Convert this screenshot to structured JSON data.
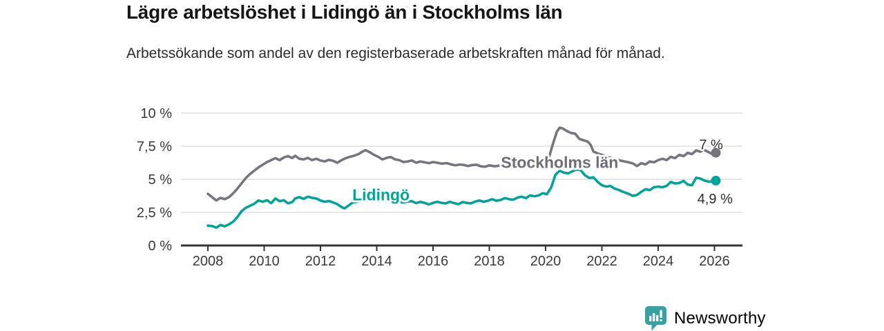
{
  "chart_data": {
    "type": "line",
    "title": "Lägre arbetslöshet i Lidingö än i Stockholms län",
    "subtitle": "Arbetssökande som andel av den registerbaserade arbetskraften månad för månad.",
    "grid": true,
    "legend_position": "inline-labels",
    "x_axis": {
      "ticks": [
        2008,
        2010,
        2012,
        2014,
        2016,
        2018,
        2020,
        2022,
        2024,
        2026
      ],
      "range": [
        2007.9,
        2027.0
      ]
    },
    "y_axis": {
      "range": [
        0,
        10
      ],
      "unit": "%",
      "ticks": [
        {
          "value": 0,
          "label": "0 %"
        },
        {
          "value": 2.5,
          "label": "2,5 %"
        },
        {
          "value": 5,
          "label": "5 %"
        },
        {
          "value": 7.5,
          "label": "7,5 %"
        },
        {
          "value": 10,
          "label": "10 %"
        }
      ]
    },
    "series": [
      {
        "name": "Stockholms län",
        "slug": "stockholms-lan",
        "color": "#75757E",
        "label_color": "#6E6E78",
        "label_at": [
          2020.5,
          6.28
        ],
        "end_label": "7 %",
        "end_label_at": [
          2025.88,
          7.62
        ],
        "end_value": 7.0,
        "points": [
          [
            2008.0,
            3.9
          ],
          [
            2008.15,
            3.65
          ],
          [
            2008.3,
            3.4
          ],
          [
            2008.45,
            3.6
          ],
          [
            2008.6,
            3.5
          ],
          [
            2008.75,
            3.65
          ],
          [
            2008.9,
            3.95
          ],
          [
            2009.05,
            4.3
          ],
          [
            2009.2,
            4.7
          ],
          [
            2009.35,
            5.1
          ],
          [
            2009.5,
            5.4
          ],
          [
            2009.65,
            5.65
          ],
          [
            2009.8,
            5.9
          ],
          [
            2009.95,
            6.1
          ],
          [
            2010.1,
            6.3
          ],
          [
            2010.25,
            6.45
          ],
          [
            2010.4,
            6.6
          ],
          [
            2010.55,
            6.45
          ],
          [
            2010.7,
            6.65
          ],
          [
            2010.85,
            6.75
          ],
          [
            2011.0,
            6.6
          ],
          [
            2011.1,
            6.78
          ],
          [
            2011.25,
            6.55
          ],
          [
            2011.4,
            6.5
          ],
          [
            2011.55,
            6.62
          ],
          [
            2011.7,
            6.45
          ],
          [
            2011.85,
            6.55
          ],
          [
            2012.0,
            6.42
          ],
          [
            2012.15,
            6.35
          ],
          [
            2012.3,
            6.47
          ],
          [
            2012.45,
            6.4
          ],
          [
            2012.6,
            6.25
          ],
          [
            2012.75,
            6.45
          ],
          [
            2012.9,
            6.6
          ],
          [
            2013.05,
            6.7
          ],
          [
            2013.2,
            6.78
          ],
          [
            2013.35,
            6.9
          ],
          [
            2013.5,
            7.1
          ],
          [
            2013.6,
            7.2
          ],
          [
            2013.75,
            7.05
          ],
          [
            2013.9,
            6.85
          ],
          [
            2014.05,
            6.7
          ],
          [
            2014.2,
            6.5
          ],
          [
            2014.35,
            6.62
          ],
          [
            2014.5,
            6.68
          ],
          [
            2014.65,
            6.5
          ],
          [
            2014.8,
            6.45
          ],
          [
            2014.95,
            6.3
          ],
          [
            2015.1,
            6.35
          ],
          [
            2015.25,
            6.42
          ],
          [
            2015.4,
            6.25
          ],
          [
            2015.55,
            6.35
          ],
          [
            2015.7,
            6.28
          ],
          [
            2015.85,
            6.22
          ],
          [
            2016.0,
            6.3
          ],
          [
            2016.15,
            6.25
          ],
          [
            2016.3,
            6.18
          ],
          [
            2016.5,
            6.22
          ],
          [
            2016.65,
            6.12
          ],
          [
            2016.8,
            6.05
          ],
          [
            2016.95,
            6.12
          ],
          [
            2017.1,
            6.08
          ],
          [
            2017.25,
            6.0
          ],
          [
            2017.4,
            6.08
          ],
          [
            2017.55,
            6.1
          ],
          [
            2017.7,
            5.98
          ],
          [
            2017.85,
            5.95
          ],
          [
            2018.0,
            6.05
          ],
          [
            2018.2,
            5.98
          ],
          [
            2018.4,
            6.05
          ],
          [
            2018.6,
            6.0
          ],
          [
            2018.8,
            6.02
          ],
          [
            2019.0,
            6.05
          ],
          [
            2019.2,
            6.02
          ],
          [
            2019.4,
            6.08
          ],
          [
            2019.6,
            6.1
          ],
          [
            2019.8,
            6.18
          ],
          [
            2019.95,
            6.3
          ],
          [
            2020.1,
            6.5
          ],
          [
            2020.25,
            7.6
          ],
          [
            2020.4,
            8.6
          ],
          [
            2020.5,
            8.9
          ],
          [
            2020.6,
            8.85
          ],
          [
            2020.75,
            8.65
          ],
          [
            2020.9,
            8.5
          ],
          [
            2021.05,
            8.45
          ],
          [
            2021.2,
            8.05
          ],
          [
            2021.35,
            7.95
          ],
          [
            2021.5,
            7.85
          ],
          [
            2021.6,
            7.6
          ],
          [
            2021.7,
            7.1
          ],
          [
            2021.85,
            6.95
          ],
          [
            2022.0,
            6.85
          ],
          [
            2022.2,
            6.7
          ],
          [
            2022.4,
            6.55
          ],
          [
            2022.6,
            6.45
          ],
          [
            2022.8,
            6.35
          ],
          [
            2022.95,
            6.28
          ],
          [
            2023.1,
            6.2
          ],
          [
            2023.25,
            6.0
          ],
          [
            2023.4,
            6.22
          ],
          [
            2023.55,
            6.12
          ],
          [
            2023.7,
            6.35
          ],
          [
            2023.85,
            6.28
          ],
          [
            2024.0,
            6.45
          ],
          [
            2024.15,
            6.55
          ],
          [
            2024.3,
            6.45
          ],
          [
            2024.45,
            6.7
          ],
          [
            2024.6,
            6.6
          ],
          [
            2024.75,
            6.85
          ],
          [
            2024.9,
            6.75
          ],
          [
            2025.05,
            7.0
          ],
          [
            2025.2,
            6.9
          ],
          [
            2025.35,
            7.18
          ],
          [
            2025.5,
            7.08
          ],
          [
            2025.6,
            7.25
          ],
          [
            2025.75,
            7.1
          ],
          [
            2025.9,
            6.92
          ],
          [
            2026.05,
            7.0
          ]
        ]
      },
      {
        "name": "Lidingö",
        "slug": "lidingo",
        "color": "#00A29A",
        "label_color": "#00A29A",
        "label_at": [
          2014.15,
          3.82
        ],
        "end_label": "4,9 %",
        "end_label_at": [
          2026.02,
          3.55
        ],
        "end_value": 4.9,
        "points": [
          [
            2008.0,
            1.5
          ],
          [
            2008.15,
            1.47
          ],
          [
            2008.3,
            1.35
          ],
          [
            2008.45,
            1.55
          ],
          [
            2008.6,
            1.45
          ],
          [
            2008.75,
            1.6
          ],
          [
            2008.9,
            1.8
          ],
          [
            2009.05,
            2.15
          ],
          [
            2009.2,
            2.6
          ],
          [
            2009.35,
            2.85
          ],
          [
            2009.5,
            3.0
          ],
          [
            2009.65,
            3.15
          ],
          [
            2009.8,
            3.4
          ],
          [
            2009.95,
            3.3
          ],
          [
            2010.1,
            3.42
          ],
          [
            2010.25,
            3.2
          ],
          [
            2010.4,
            3.55
          ],
          [
            2010.55,
            3.35
          ],
          [
            2010.7,
            3.42
          ],
          [
            2010.85,
            3.18
          ],
          [
            2011.0,
            3.28
          ],
          [
            2011.1,
            3.55
          ],
          [
            2011.25,
            3.65
          ],
          [
            2011.4,
            3.52
          ],
          [
            2011.55,
            3.68
          ],
          [
            2011.7,
            3.6
          ],
          [
            2011.85,
            3.55
          ],
          [
            2012.0,
            3.4
          ],
          [
            2012.15,
            3.3
          ],
          [
            2012.3,
            3.36
          ],
          [
            2012.45,
            3.25
          ],
          [
            2012.6,
            3.12
          ],
          [
            2012.75,
            2.9
          ],
          [
            2012.85,
            2.8
          ],
          [
            2013.0,
            3.02
          ],
          [
            2013.15,
            3.25
          ],
          [
            2013.3,
            3.3
          ],
          [
            2013.45,
            3.4
          ],
          [
            2013.6,
            3.44
          ],
          [
            2013.75,
            3.36
          ],
          [
            2013.9,
            3.46
          ],
          [
            2014.05,
            3.4
          ],
          [
            2014.2,
            3.48
          ],
          [
            2014.35,
            3.52
          ],
          [
            2014.5,
            3.45
          ],
          [
            2014.65,
            3.38
          ],
          [
            2014.8,
            3.3
          ],
          [
            2014.95,
            3.25
          ],
          [
            2015.1,
            3.32
          ],
          [
            2015.25,
            3.35
          ],
          [
            2015.4,
            3.2
          ],
          [
            2015.55,
            3.3
          ],
          [
            2015.7,
            3.22
          ],
          [
            2015.85,
            3.1
          ],
          [
            2016.0,
            3.22
          ],
          [
            2016.15,
            3.3
          ],
          [
            2016.3,
            3.22
          ],
          [
            2016.45,
            3.18
          ],
          [
            2016.6,
            3.3
          ],
          [
            2016.75,
            3.2
          ],
          [
            2016.9,
            3.12
          ],
          [
            2017.05,
            3.28
          ],
          [
            2017.2,
            3.22
          ],
          [
            2017.35,
            3.18
          ],
          [
            2017.5,
            3.32
          ],
          [
            2017.65,
            3.4
          ],
          [
            2017.8,
            3.3
          ],
          [
            2017.95,
            3.38
          ],
          [
            2018.1,
            3.5
          ],
          [
            2018.25,
            3.38
          ],
          [
            2018.4,
            3.44
          ],
          [
            2018.55,
            3.58
          ],
          [
            2018.7,
            3.5
          ],
          [
            2018.85,
            3.46
          ],
          [
            2019.0,
            3.62
          ],
          [
            2019.15,
            3.68
          ],
          [
            2019.3,
            3.58
          ],
          [
            2019.45,
            3.78
          ],
          [
            2019.6,
            3.72
          ],
          [
            2019.75,
            3.78
          ],
          [
            2019.9,
            3.95
          ],
          [
            2020.05,
            3.88
          ],
          [
            2020.2,
            4.4
          ],
          [
            2020.35,
            5.35
          ],
          [
            2020.5,
            5.65
          ],
          [
            2020.65,
            5.5
          ],
          [
            2020.8,
            5.45
          ],
          [
            2020.95,
            5.6
          ],
          [
            2021.1,
            5.75
          ],
          [
            2021.25,
            5.68
          ],
          [
            2021.4,
            5.3
          ],
          [
            2021.55,
            5.1
          ],
          [
            2021.7,
            5.15
          ],
          [
            2021.85,
            4.8
          ],
          [
            2022.0,
            4.55
          ],
          [
            2022.15,
            4.45
          ],
          [
            2022.3,
            4.5
          ],
          [
            2022.45,
            4.3
          ],
          [
            2022.6,
            4.2
          ],
          [
            2022.75,
            4.05
          ],
          [
            2022.95,
            3.9
          ],
          [
            2023.1,
            3.75
          ],
          [
            2023.25,
            3.82
          ],
          [
            2023.4,
            4.05
          ],
          [
            2023.55,
            4.25
          ],
          [
            2023.7,
            4.18
          ],
          [
            2023.85,
            4.4
          ],
          [
            2024.0,
            4.45
          ],
          [
            2024.15,
            4.4
          ],
          [
            2024.3,
            4.5
          ],
          [
            2024.45,
            4.8
          ],
          [
            2024.6,
            4.68
          ],
          [
            2024.75,
            4.72
          ],
          [
            2024.9,
            4.88
          ],
          [
            2025.05,
            4.6
          ],
          [
            2025.2,
            4.55
          ],
          [
            2025.35,
            5.12
          ],
          [
            2025.5,
            5.05
          ],
          [
            2025.65,
            4.9
          ],
          [
            2025.8,
            4.82
          ],
          [
            2025.95,
            4.85
          ],
          [
            2026.05,
            4.9
          ]
        ]
      }
    ],
    "axis_color": "#333333",
    "gridline_color": "#D8D8D8"
  },
  "branding": {
    "logo_text": "Newsworthy",
    "brand_color": "#3A9C9E",
    "icon": "speech-bubble-bar-chart-icon"
  }
}
